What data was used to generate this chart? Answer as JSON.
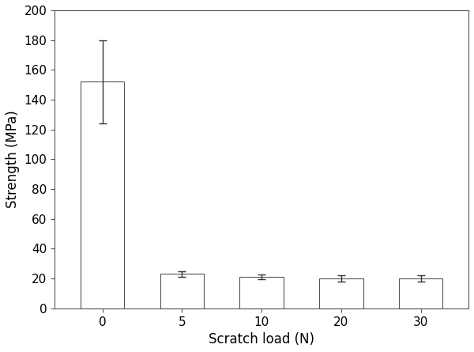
{
  "x_positions": [
    0,
    1,
    2,
    3,
    4
  ],
  "x_labels": [
    "0",
    "5",
    "10",
    "20",
    "30"
  ],
  "values": [
    152,
    23,
    21,
    20,
    20
  ],
  "errors": [
    28,
    2,
    1.5,
    2,
    2
  ],
  "bar_color": "#ffffff",
  "bar_edgecolor": "#555555",
  "errorbar_color": "#333333",
  "bar_width": 0.55,
  "xlabel": "Scratch load (N)",
  "ylabel": "Strength (MPa)",
  "ylim": [
    0,
    200
  ],
  "yticks": [
    0,
    20,
    40,
    60,
    80,
    100,
    120,
    140,
    160,
    180,
    200
  ],
  "xlim": [
    -0.6,
    4.6
  ],
  "xlabel_fontsize": 12,
  "ylabel_fontsize": 12,
  "tick_fontsize": 11,
  "background_color": "#ffffff"
}
